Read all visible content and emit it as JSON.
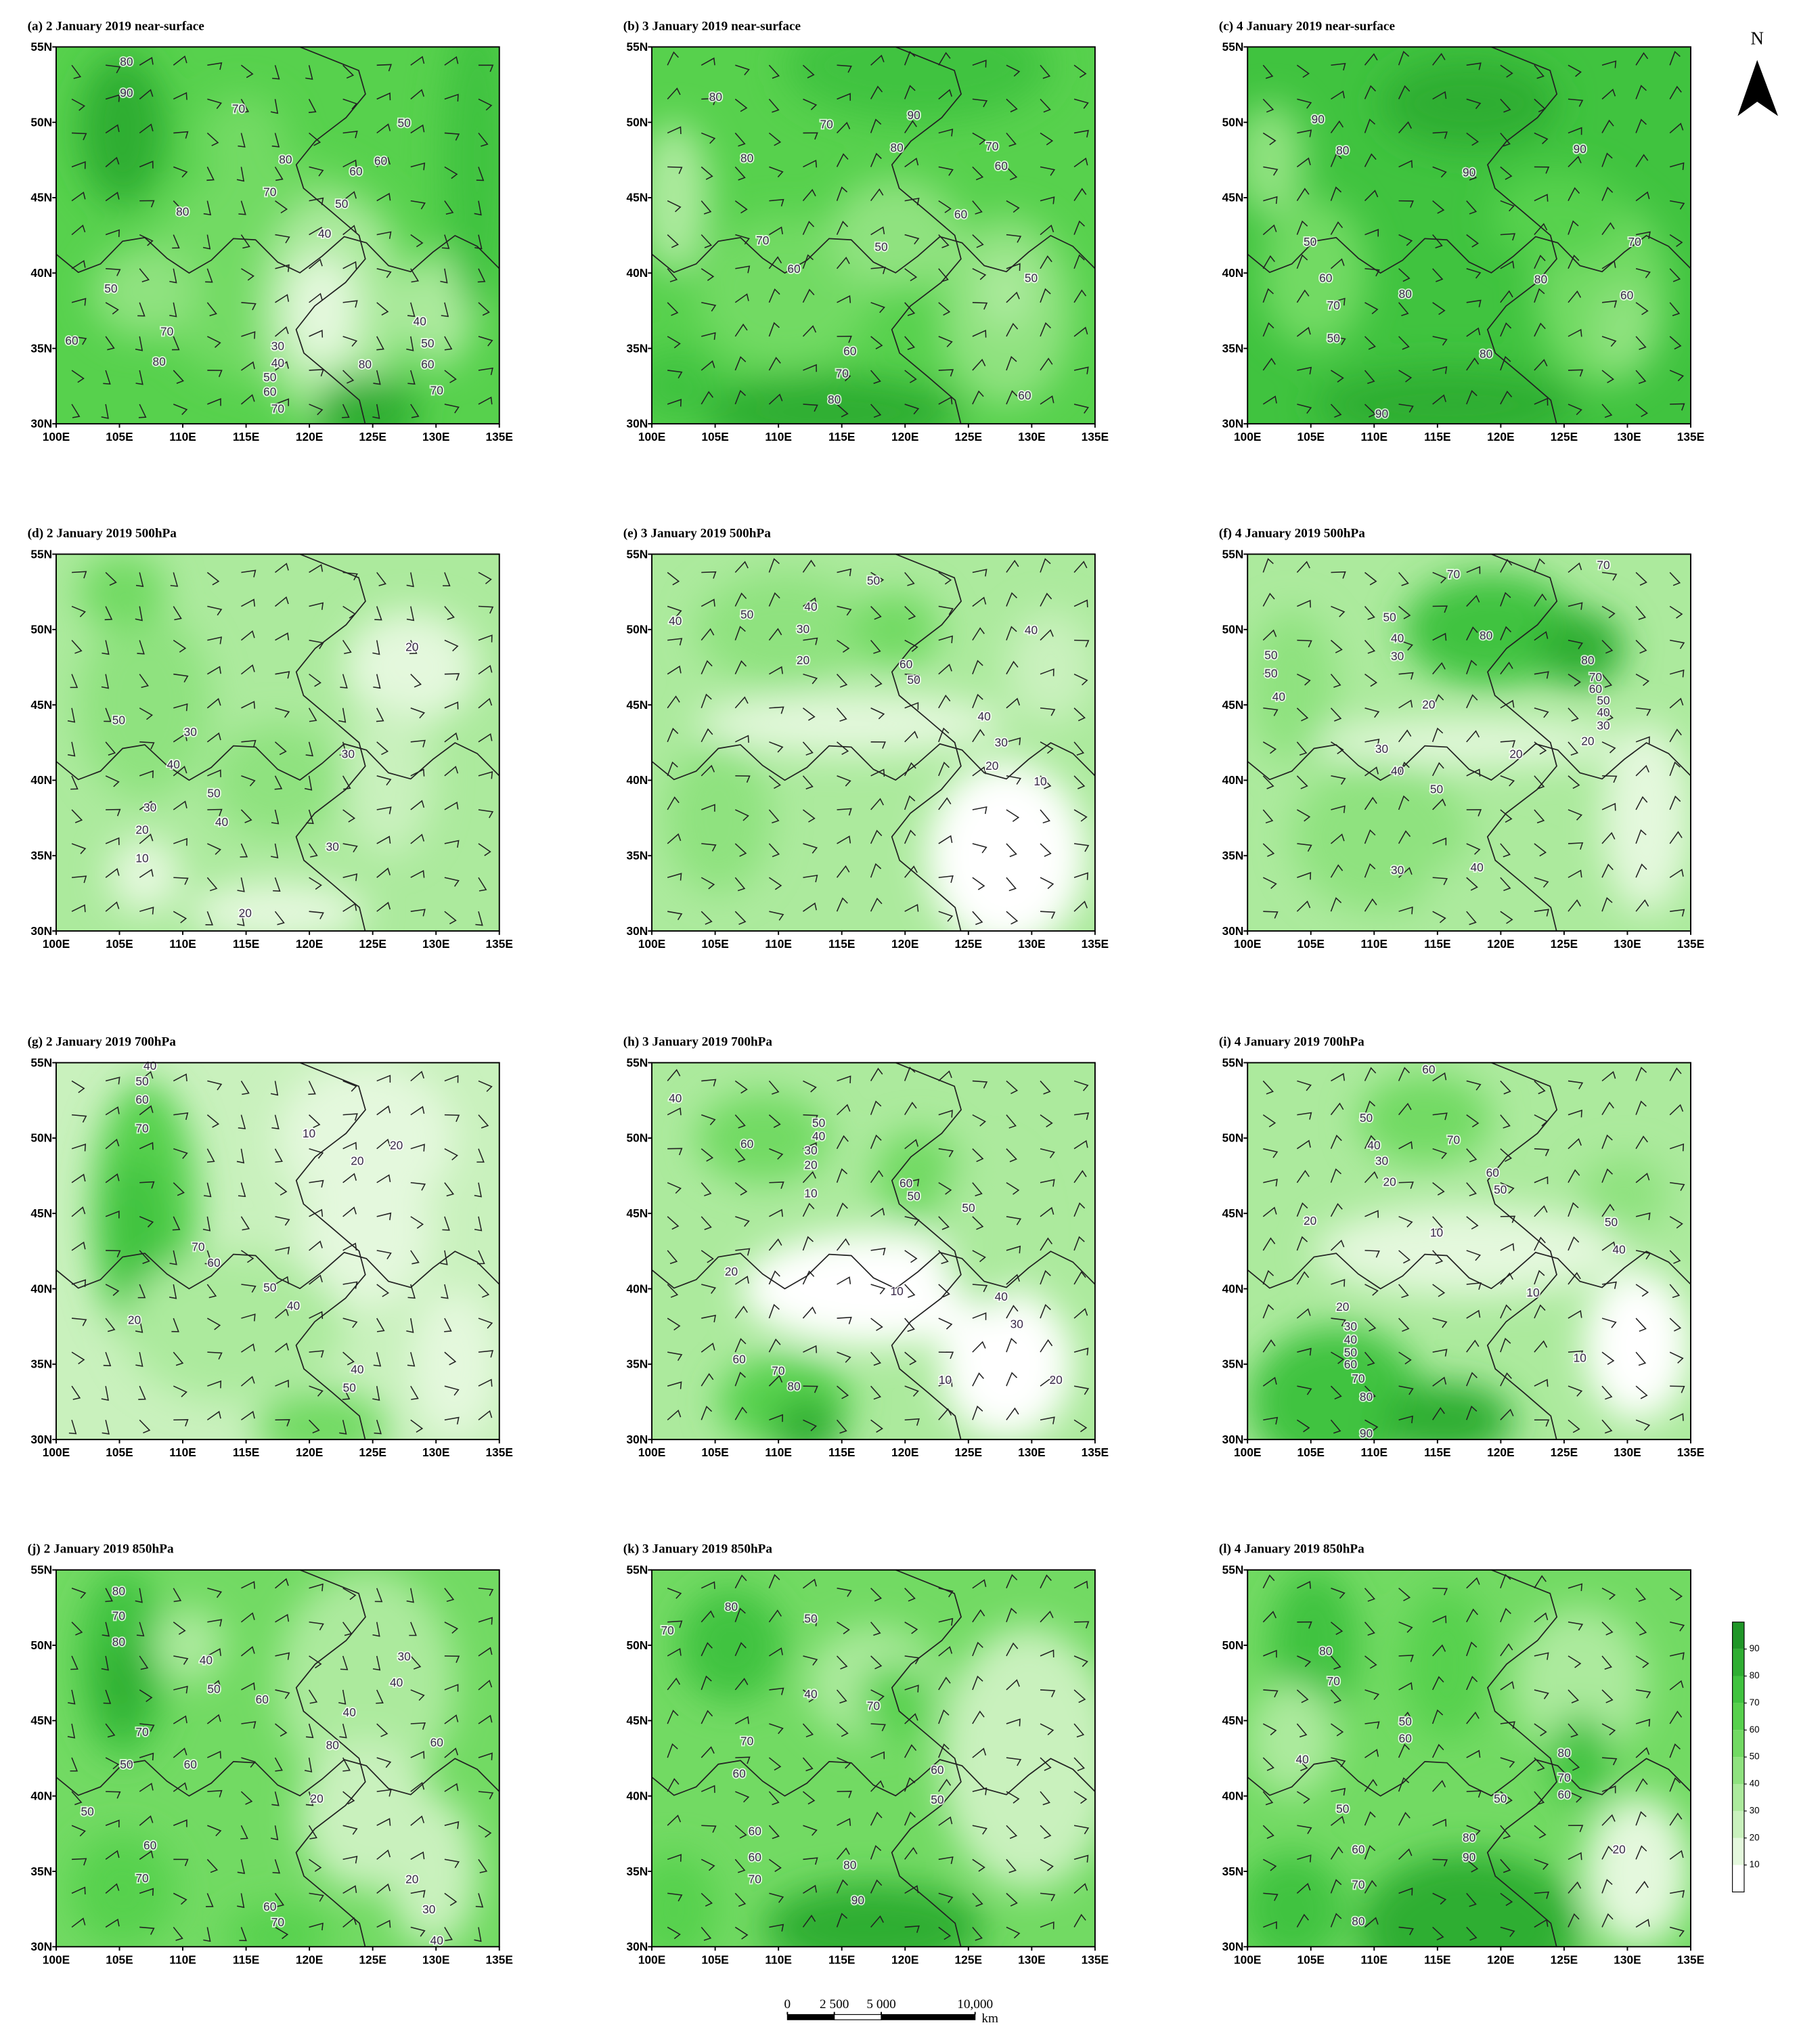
{
  "x_ticks": [
    "100E",
    "105E",
    "110E",
    "115E",
    "120E",
    "125E",
    "130E",
    "135E"
  ],
  "y_ticks": [
    "30N",
    "35N",
    "40N",
    "45N",
    "50N",
    "55N"
  ],
  "north_label": "N",
  "colorbar": {
    "lim": [
      0,
      100
    ],
    "ticks": [
      10,
      20,
      30,
      40,
      50,
      60,
      70,
      80,
      90
    ],
    "colors": [
      "#ffffff",
      "#e4f8dd",
      "#c9f1bd",
      "#acea9d",
      "#8fe27f",
      "#72da63",
      "#57d14d",
      "#40c33f",
      "#2fae32",
      "#209628"
    ]
  },
  "scale_bar": {
    "ticks": [
      0,
      {
        "value": 2500,
        "label": "2 500"
      },
      {
        "value": 5000,
        "label": "5 000"
      },
      {
        "value": 10000,
        "label": "10,000"
      }
    ],
    "unit": "km"
  },
  "panels": [
    {
      "title": "(a) 2 January 2019 near-surface",
      "contour_labels": [
        80,
        90,
        70,
        80,
        70,
        80,
        60,
        60,
        50,
        50,
        40,
        50,
        70,
        60,
        80,
        30,
        40,
        50,
        60,
        70,
        80,
        40,
        50,
        60,
        70
      ]
    },
    {
      "title": "(b) 3 January 2019 near-surface",
      "contour_labels": [
        80,
        70,
        90,
        80,
        80,
        70,
        60,
        60,
        70,
        50,
        60,
        50,
        60,
        70,
        80,
        60
      ]
    },
    {
      "title": "(c) 4 January 2019 near-surface",
      "contour_labels": [
        90,
        80,
        90,
        90,
        50,
        60,
        70,
        50,
        80,
        80,
        70,
        60,
        80,
        90
      ]
    },
    {
      "title": "(d) 2 January 2019 500hPa",
      "contour_labels": [
        20,
        50,
        30,
        40,
        30,
        30,
        50,
        20,
        40,
        10,
        30,
        20
      ]
    },
    {
      "title": "(e) 3 January 2019 500hPa",
      "contour_labels": [
        50,
        50,
        40,
        40,
        30,
        20,
        40,
        60,
        50,
        40,
        30,
        20,
        10
      ]
    },
    {
      "title": "(f) 4 January 2019 500hPa",
      "contour_labels": [
        70,
        70,
        50,
        40,
        30,
        80,
        80,
        70,
        60,
        50,
        40,
        30,
        20,
        50,
        50,
        40,
        20,
        30,
        40,
        50,
        20,
        30,
        40
      ]
    },
    {
      "title": "(g) 2 January 2019 700hPa",
      "contour_labels": [
        40,
        50,
        60,
        70,
        10,
        20,
        20,
        70,
        60,
        50,
        40,
        20,
        40,
        50
      ]
    },
    {
      "title": "(h) 3 January 2019 700hPa",
      "contour_labels": [
        40,
        60,
        50,
        40,
        30,
        20,
        10,
        60,
        50,
        50,
        20,
        10,
        40,
        30,
        60,
        70,
        80,
        10,
        20
      ]
    },
    {
      "title": "(i) 4 January 2019 700hPa",
      "contour_labels": [
        60,
        50,
        40,
        30,
        70,
        60,
        50,
        20,
        20,
        10,
        50,
        40,
        10,
        20,
        30,
        40,
        50,
        60,
        70,
        80,
        90,
        10
      ]
    },
    {
      "title": "(j) 2 January 2019 850hPa",
      "contour_labels": [
        80,
        70,
        80,
        40,
        50,
        60,
        30,
        40,
        40,
        70,
        80,
        60,
        50,
        60,
        50,
        20,
        60,
        70,
        20,
        60,
        70,
        30,
        40
      ]
    },
    {
      "title": "(k) 3 January 2019 850hPa",
      "contour_labels": [
        80,
        70,
        50,
        40,
        70,
        70,
        60,
        60,
        50,
        60,
        60,
        70,
        80,
        90
      ]
    },
    {
      "title": "(l) 4 January 2019 850hPa",
      "contour_labels": [
        80,
        70,
        50,
        60,
        80,
        40,
        70,
        60,
        50,
        50,
        60,
        80,
        90,
        70,
        20,
        80
      ]
    }
  ]
}
